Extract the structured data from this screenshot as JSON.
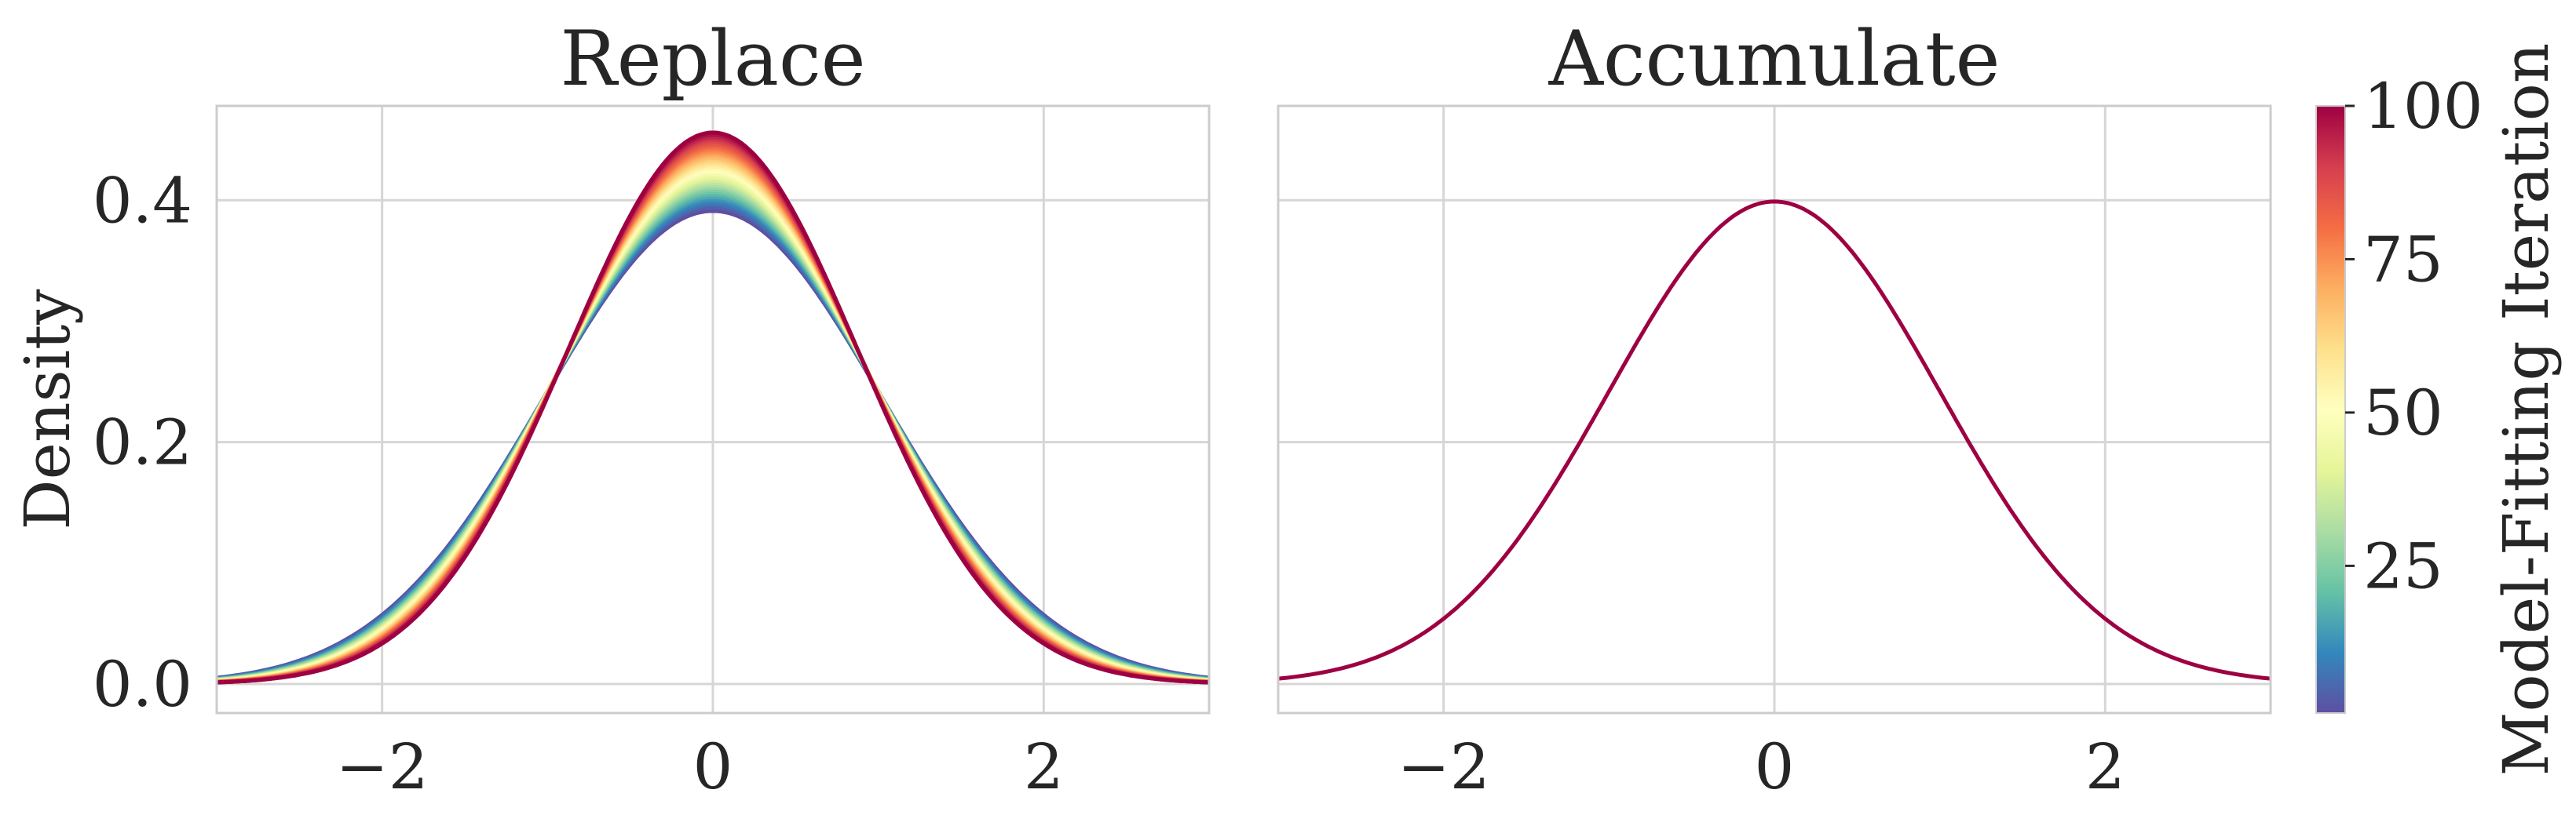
{
  "chart_data": [
    {
      "type": "line",
      "title": "Replace",
      "xlabel": "",
      "ylabel": "Density",
      "xlim": [
        -3,
        3
      ],
      "ylim": [
        -0.024,
        0.478
      ],
      "xticks": [
        -2,
        0,
        2
      ],
      "xtick_labels": [
        "−2",
        "0",
        "2"
      ],
      "yticks": [
        0.0,
        0.2,
        0.4
      ],
      "ytick_labels": [
        "0.0",
        "0.2",
        "0.4"
      ],
      "grid": true,
      "series_description": "Normal density curves N(0, sigma) over iterations 1..100, colored by iteration on Spectral_r colormap",
      "iterations": {
        "start": 1,
        "end": 100,
        "step": 3
      },
      "sigma_start": 1.02,
      "sigma_end": 0.875
    },
    {
      "type": "line",
      "title": "Accumulate",
      "xlabel": "",
      "ylabel": "",
      "xlim": [
        -3,
        3
      ],
      "ylim": [
        -0.024,
        0.478
      ],
      "xticks": [
        -2,
        0,
        2
      ],
      "xtick_labels": [
        "−2",
        "0",
        "2"
      ],
      "yticks": [
        0.0,
        0.2,
        0.4
      ],
      "grid": true,
      "sigma": 1.0,
      "color": "#9e0142"
    }
  ],
  "colorbar": {
    "label": "Model-Fitting Iteration",
    "range": [
      1,
      100
    ],
    "ticks": [
      25,
      50,
      75,
      100
    ],
    "tick_labels": [
      "25",
      "50",
      "75",
      "100"
    ],
    "colormap_stops": [
      "#5e4fa2",
      "#3288bd",
      "#66c2a5",
      "#abdda4",
      "#e6f598",
      "#ffffbf",
      "#fee08b",
      "#fdae61",
      "#f46d43",
      "#d53e4f",
      "#9e0142"
    ]
  }
}
